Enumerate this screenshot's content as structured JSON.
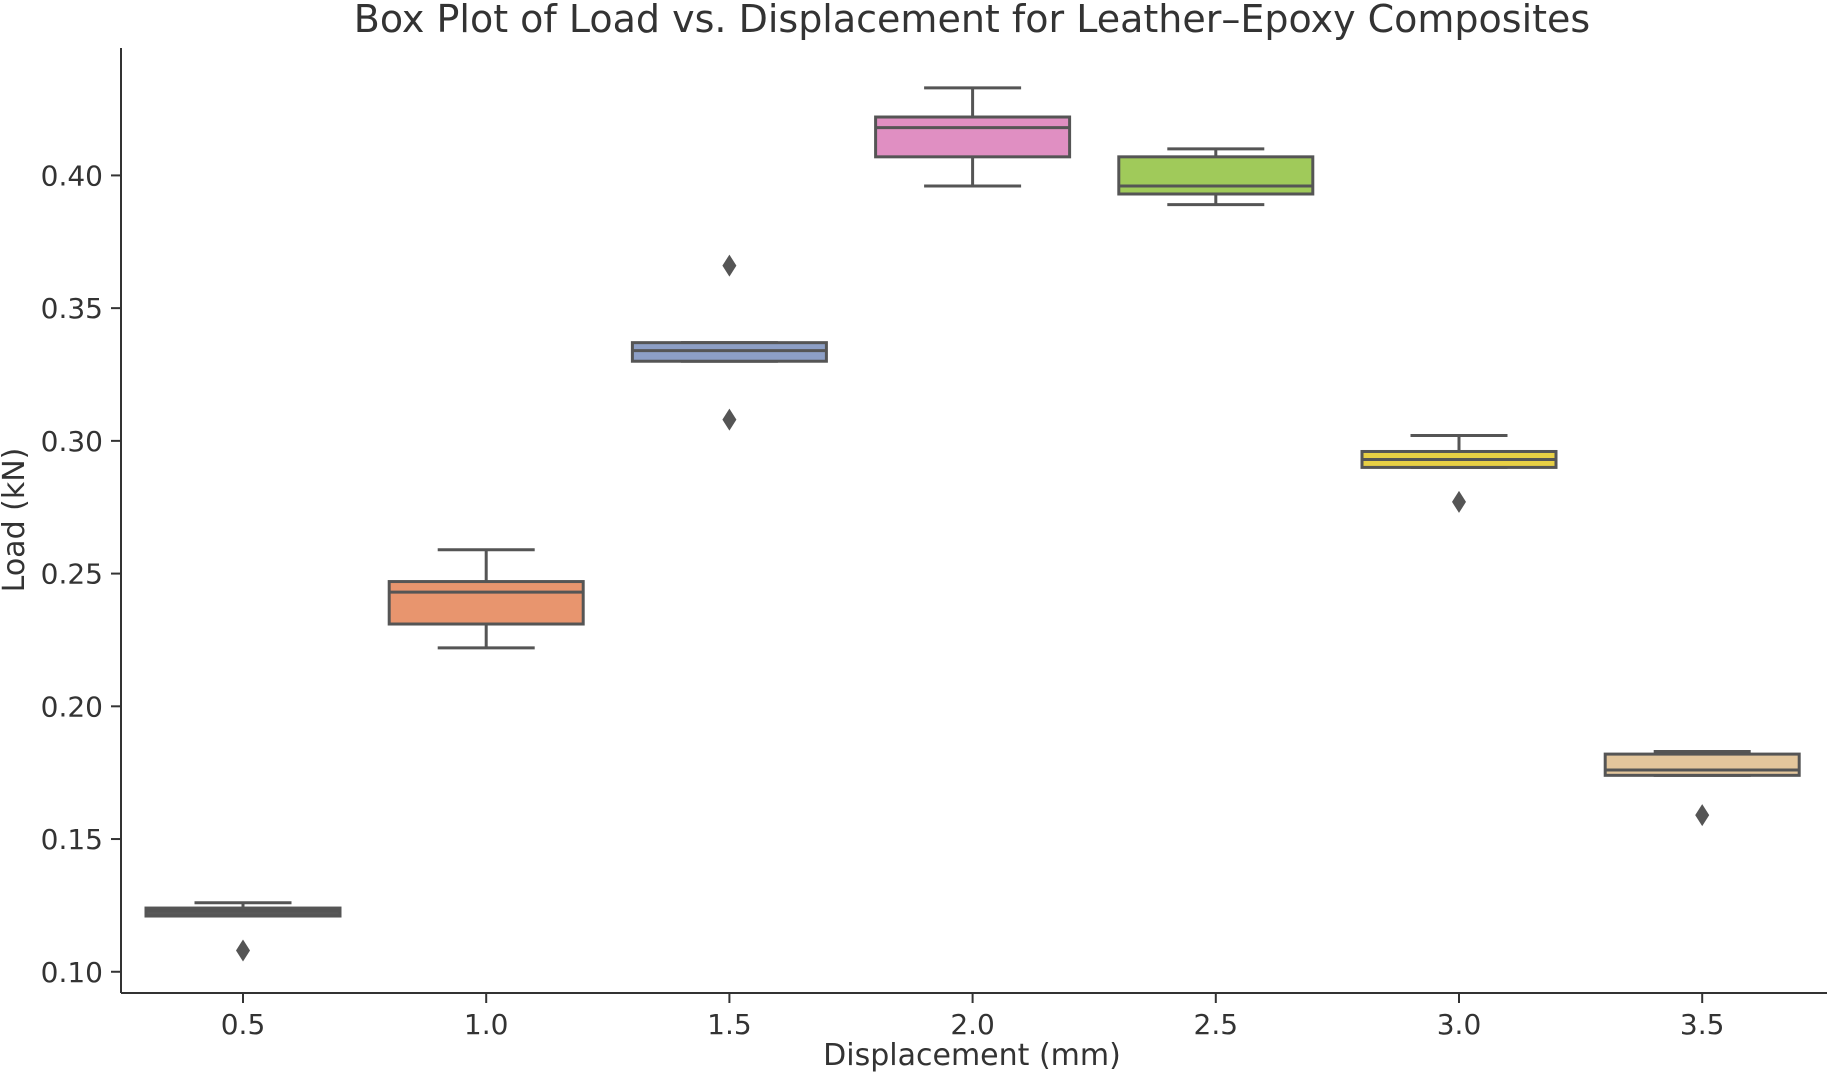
{
  "chart_data": {
    "type": "box",
    "title": "Box Plot of Load vs. Displacement for Leather–Epoxy Composites",
    "xlabel": "Displacement (mm)",
    "ylabel": "Load (kN)",
    "ylim": [
      0.092,
      0.448
    ],
    "yticks": [
      0.1,
      0.15,
      0.2,
      0.25,
      0.3,
      0.35,
      0.4
    ],
    "ytick_labels": [
      "0.10",
      "0.15",
      "0.20",
      "0.25",
      "0.30",
      "0.35",
      "0.40"
    ],
    "categories": [
      "0.5",
      "1.0",
      "1.5",
      "2.0",
      "2.5",
      "3.0",
      "3.5"
    ],
    "grid": false,
    "legend": "none",
    "box_stroke_color": "#555555",
    "boxes": [
      {
        "category": "0.5",
        "whisker_low": 0.121,
        "q1": 0.121,
        "median": 0.123,
        "q3": 0.124,
        "whisker_high": 0.126,
        "outliers": [
          0.108
        ],
        "color": "#595959"
      },
      {
        "category": "1.0",
        "whisker_low": 0.222,
        "q1": 0.231,
        "median": 0.243,
        "q3": 0.247,
        "whisker_high": 0.259,
        "outliers": [],
        "color": "#e8956e"
      },
      {
        "category": "1.5",
        "whisker_low": 0.33,
        "q1": 0.33,
        "median": 0.334,
        "q3": 0.337,
        "whisker_high": 0.337,
        "outliers": [
          0.366,
          0.308
        ],
        "color": "#8d9fc6"
      },
      {
        "category": "2.0",
        "whisker_low": 0.396,
        "q1": 0.407,
        "median": 0.418,
        "q3": 0.422,
        "whisker_high": 0.433,
        "outliers": [],
        "color": "#e08fc2"
      },
      {
        "category": "2.5",
        "whisker_low": 0.389,
        "q1": 0.393,
        "median": 0.396,
        "q3": 0.407,
        "whisker_high": 0.41,
        "outliers": [],
        "color": "#a0ca5a"
      },
      {
        "category": "3.0",
        "whisker_low": 0.29,
        "q1": 0.29,
        "median": 0.293,
        "q3": 0.296,
        "whisker_high": 0.302,
        "outliers": [
          0.277
        ],
        "color": "#e8d044"
      },
      {
        "category": "3.5",
        "whisker_low": 0.174,
        "q1": 0.174,
        "median": 0.176,
        "q3": 0.182,
        "whisker_high": 0.183,
        "outliers": [
          0.159
        ],
        "color": "#e3c69c"
      }
    ]
  }
}
